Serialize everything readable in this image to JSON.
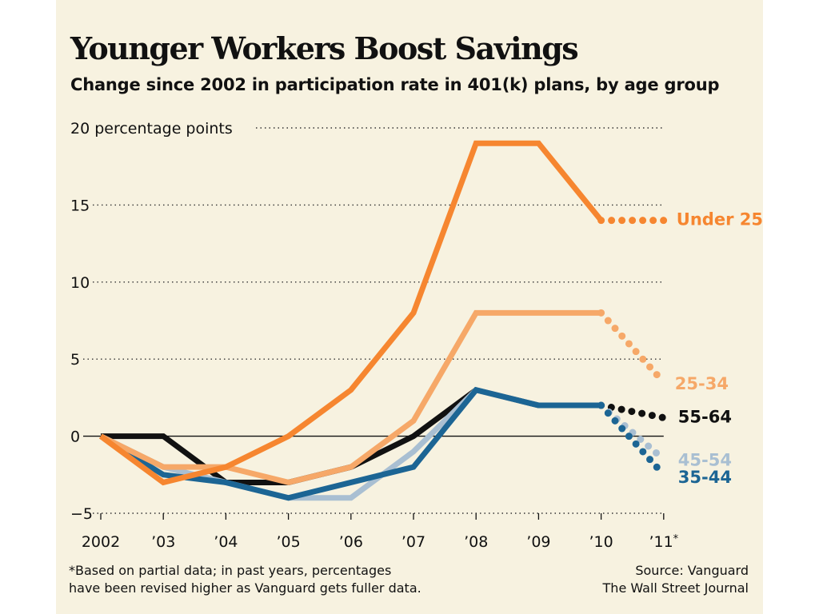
{
  "chart_data": {
    "type": "line",
    "title": "Younger Workers Boost Savings",
    "subtitle": "Change since 2002 in participation rate in 401(k) plans, by age group",
    "ylabel": "percentage points",
    "top_tick_label": "20 percentage points",
    "ylim": [
      -5,
      20
    ],
    "yticks": [
      -5,
      0,
      5,
      10,
      15,
      20
    ],
    "ytick_labels": [
      "−5",
      "0",
      "5",
      "10",
      "15",
      "20 percentage points"
    ],
    "categories": [
      "2002",
      "’03",
      "’04",
      "’05",
      "’06",
      "’07",
      "’08",
      "’09",
      "’10",
      "’11*"
    ],
    "grid": "horizontal dotted",
    "partial_data_note": "Final segment (2010–2011) is dotted: based on partial data",
    "series": [
      {
        "name": "55-64",
        "color": "#111111",
        "values": [
          0,
          0,
          -3,
          -3,
          -2,
          0,
          3,
          2,
          2,
          1.2
        ]
      },
      {
        "name": "45-54",
        "color": "#a9bfd2",
        "values": [
          0,
          -2,
          -3,
          -4,
          -4,
          -1,
          3,
          2,
          2,
          -1.5
        ]
      },
      {
        "name": "35-44",
        "color": "#1c6594",
        "values": [
          0,
          -2.5,
          -3,
          -4,
          -3,
          -2,
          3,
          2,
          2,
          -2.5
        ]
      },
      {
        "name": "25-34",
        "color": "#f6a868",
        "values": [
          0,
          -2,
          -2,
          -3,
          -2,
          1,
          8,
          8,
          8,
          3.5
        ]
      },
      {
        "name": "Under 25",
        "color": "#f68630",
        "values": [
          0,
          -3,
          -2,
          0,
          3,
          8,
          19,
          19,
          14,
          14
        ]
      }
    ]
  },
  "footnote_lines": [
    "*Based on partial data; in past years, percentages",
    "have been revised higher as Vanguard gets fuller data."
  ],
  "source_lines": [
    "Source: Vanguard",
    "The Wall Street Journal"
  ]
}
